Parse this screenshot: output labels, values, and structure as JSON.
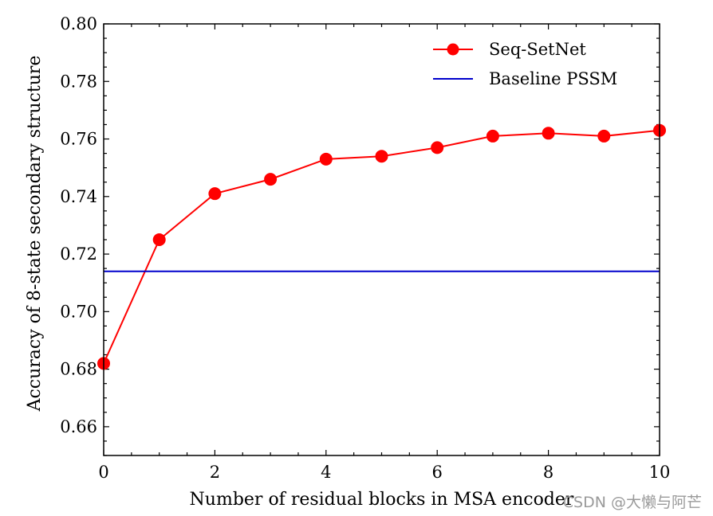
{
  "chart_data": {
    "type": "line",
    "title": "",
    "xlabel": "Number of residual blocks in MSA encoder",
    "ylabel": "Accuracy of 8-state secondary structure",
    "xlim": [
      0,
      10
    ],
    "ylim": [
      0.65,
      0.8
    ],
    "xticks": [
      0,
      2,
      4,
      6,
      8,
      10
    ],
    "xtick_labels": [
      "0",
      "2",
      "4",
      "6",
      "8",
      "10"
    ],
    "yticks": [
      0.66,
      0.68,
      0.7,
      0.72,
      0.74,
      0.76,
      0.78,
      0.8
    ],
    "ytick_labels": [
      "0.66",
      "0.68",
      "0.70",
      "0.72",
      "0.74",
      "0.76",
      "0.78",
      "0.80"
    ],
    "grid": false,
    "legend_position": "top-right",
    "series": [
      {
        "name": "Seq-SetNet",
        "color": "#ff0000",
        "marker": "circle",
        "x": [
          0,
          1,
          2,
          3,
          4,
          5,
          6,
          7,
          8,
          9,
          10
        ],
        "values": [
          0.682,
          0.725,
          0.741,
          0.746,
          0.753,
          0.754,
          0.757,
          0.761,
          0.762,
          0.761,
          0.763
        ]
      },
      {
        "name": "Baseline PSSM",
        "color": "#0000cc",
        "marker": "none",
        "x": [
          0,
          10
        ],
        "values": [
          0.714,
          0.714
        ]
      }
    ]
  },
  "watermark": "CSDN @大懒与阿芒"
}
